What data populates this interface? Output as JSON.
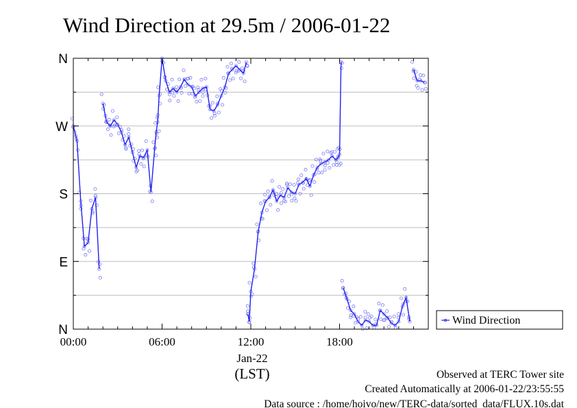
{
  "chart_data": {
    "type": "scatter",
    "title": "Wind Direction at 29.5m / 2006-01-22",
    "xlabel": "(LST)",
    "x_date_label": "Jan-22",
    "ylabel": "",
    "xlim": [
      0,
      24
    ],
    "ylim": [
      0,
      360
    ],
    "x_ticks": [
      {
        "x": 0,
        "label": "00:00"
      },
      {
        "x": 6,
        "label": "06:00"
      },
      {
        "x": 12,
        "label": "12:00"
      },
      {
        "x": 18,
        "label": "18:00"
      }
    ],
    "y_ticks": [
      {
        "y": 0,
        "label": "N"
      },
      {
        "y": 90,
        "label": "E"
      },
      {
        "y": 180,
        "label": "S"
      },
      {
        "y": 270,
        "label": "W"
      },
      {
        "y": 360,
        "label": "N"
      }
    ],
    "grid": true,
    "legend": {
      "position": "right",
      "entries": [
        "Wind Direction"
      ]
    },
    "color": "#2020f0",
    "point_color": "#7a7af5",
    "series": [
      {
        "name": "Wind Direction",
        "note_unit": "degrees",
        "x": [
          0.0,
          0.25,
          0.5,
          0.75,
          1.0,
          1.25,
          1.5,
          1.75,
          2.0,
          2.25,
          2.5,
          2.75,
          3.0,
          3.25,
          3.5,
          3.75,
          4.0,
          4.25,
          4.5,
          4.75,
          5.0,
          5.25,
          5.5,
          5.6,
          5.7,
          5.8,
          6.0,
          6.25,
          6.5,
          6.75,
          7.0,
          7.25,
          7.5,
          7.75,
          8.0,
          8.25,
          8.5,
          8.75,
          9.0,
          9.25,
          9.5,
          9.75,
          10.0,
          10.25,
          10.5,
          10.75,
          11.0,
          11.25,
          11.5,
          11.7,
          11.8,
          11.9,
          12.0,
          12.25,
          12.5,
          12.75,
          13.0,
          13.25,
          13.5,
          13.75,
          14.0,
          14.25,
          14.5,
          14.75,
          15.0,
          15.25,
          15.5,
          15.75,
          16.0,
          16.25,
          16.5,
          16.75,
          17.0,
          17.25,
          17.5,
          17.75,
          17.9,
          18.0,
          18.1,
          18.25,
          18.5,
          18.75,
          19.0,
          19.25,
          19.5,
          19.75,
          20.0,
          20.25,
          20.5,
          20.75,
          21.0,
          21.25,
          21.5,
          21.75,
          22.0,
          22.25,
          22.5,
          22.75,
          23.0,
          23.25,
          23.5,
          23.75
        ],
        "y": [
          270,
          250,
          170,
          110,
          115,
          160,
          175,
          80,
          300,
          275,
          270,
          278,
          272,
          262,
          245,
          255,
          235,
          215,
          230,
          228,
          238,
          182,
          240,
          262,
          275,
          310,
          360,
          330,
          315,
          320,
          315,
          322,
          332,
          325,
          322,
          310,
          315,
          320,
          322,
          292,
          290,
          298,
          310,
          322,
          340,
          345,
          350,
          345,
          340,
          355,
          20,
          10,
          50,
          80,
          130,
          155,
          170,
          175,
          185,
          170,
          178,
          175,
          188,
          182,
          180,
          192,
          195,
          200,
          190,
          205,
          215,
          220,
          222,
          225,
          230,
          225,
          228,
          232,
          355,
          55,
          40,
          25,
          20,
          10,
          5,
          12,
          10,
          5,
          5,
          25,
          20,
          15,
          8,
          5,
          10,
          30,
          42,
          10,
          345,
          330,
          330,
          328
        ]
      }
    ]
  },
  "footer": {
    "observed": "Observed at TERC Tower site",
    "created": "Created Automatically at 2006-01-22/23:55:55",
    "source": "Data source : /home/hoivo/new/TERC-data/sorted_data/FLUX.10s.dat"
  }
}
